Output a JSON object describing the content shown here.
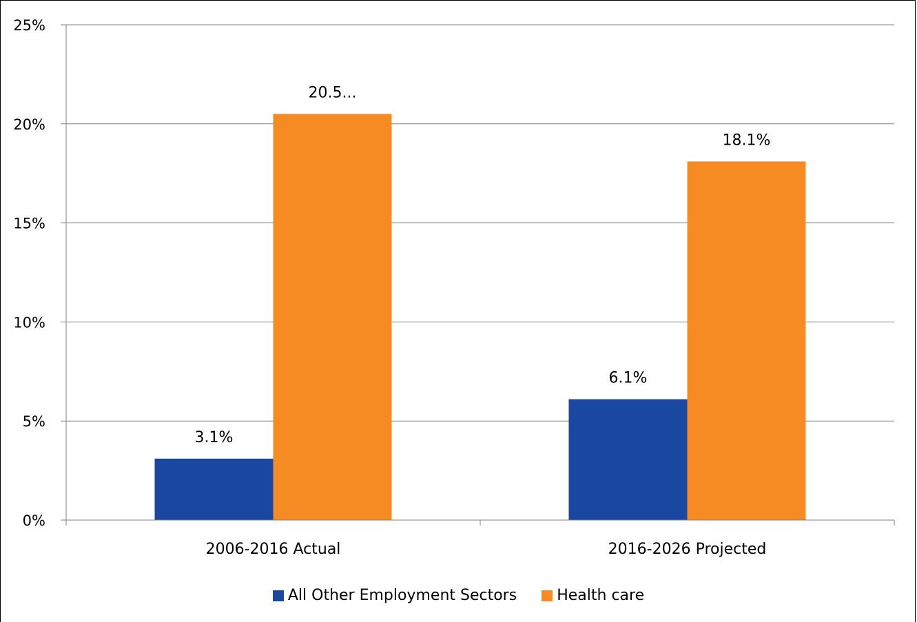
{
  "chart_data": {
    "type": "bar",
    "categories": [
      "2006-2016 Actual",
      "2016-2026 Projected"
    ],
    "series": [
      {
        "name": "All Other Employment Sectors",
        "color": "#1a48a0",
        "values": [
          3.1,
          6.1
        ],
        "labels": [
          "3.1%",
          "6.1%"
        ]
      },
      {
        "name": "Health care",
        "color": "#f58b22",
        "values": [
          20.5,
          18.1
        ],
        "labels": [
          "20.5...",
          "18.1%"
        ]
      }
    ],
    "yticks": [
      "0%",
      "5%",
      "10%",
      "15%",
      "20%",
      "25%"
    ],
    "ylim": [
      0,
      25
    ],
    "grid": true,
    "legend_position": "bottom"
  }
}
